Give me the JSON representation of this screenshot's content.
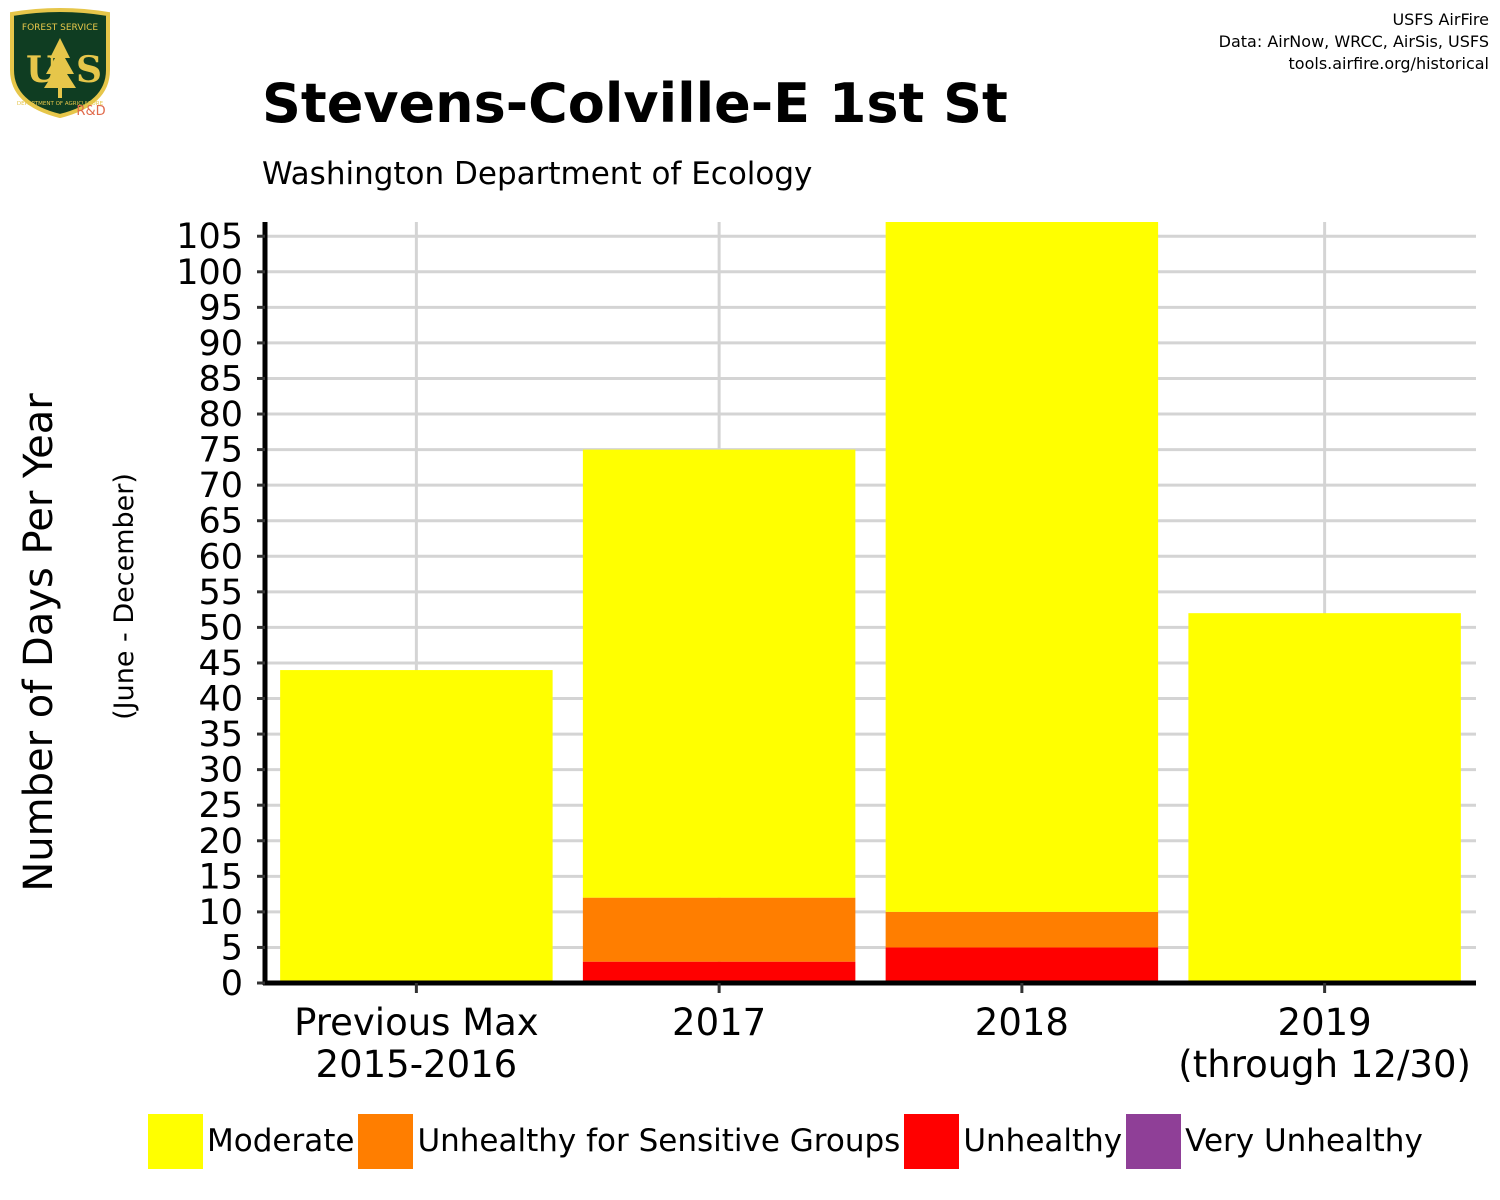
{
  "header": {
    "title": "Stevens-Colville-E 1st St",
    "subtitle": "Washington Department of Ecology",
    "credits": [
      "USFS AirFire",
      "Data: AirNow, WRCC, AirSis, USFS",
      "tools.airfire.org/historical"
    ]
  },
  "logo": {
    "text": "US",
    "top_text": "FOREST SERVICE",
    "bottom_text": "DEPARTMENT OF AGRICULTURE",
    "badge": "R&D",
    "colors": {
      "shield": "#0f3d22",
      "border": "#e6c64a",
      "badge": "#e06a4b"
    }
  },
  "chart_data": {
    "type": "bar",
    "stacked": true,
    "title": "Stevens-Colville-E 1st St",
    "subtitle": "Washington Department of Ecology",
    "ylabel": "Number of Days Per Year",
    "ylabel_note": "(June - December)",
    "xlabel": "",
    "categories": [
      [
        "Previous Max",
        "2015-2016"
      ],
      [
        "2017"
      ],
      [
        "2018"
      ],
      [
        "2019",
        "(through 12/30)"
      ]
    ],
    "ylim": [
      0,
      107
    ],
    "yticks": [
      0,
      5,
      10,
      15,
      20,
      25,
      30,
      35,
      40,
      45,
      50,
      55,
      60,
      65,
      70,
      75,
      80,
      85,
      90,
      95,
      100,
      105
    ],
    "grid": true,
    "legend_position": "bottom",
    "series": [
      {
        "name": "Moderate",
        "color": "#ffff00",
        "values": [
          44,
          63,
          97,
          52
        ]
      },
      {
        "name": "Unhealthy for Sensitive Groups",
        "color": "#ff7e00",
        "values": [
          0,
          9,
          5,
          0
        ]
      },
      {
        "name": "Unhealthy",
        "color": "#ff0000",
        "values": [
          0,
          3,
          5,
          0
        ]
      },
      {
        "name": "Very Unhealthy",
        "color": "#8f3f97",
        "values": [
          0,
          0,
          0,
          0
        ]
      }
    ]
  }
}
